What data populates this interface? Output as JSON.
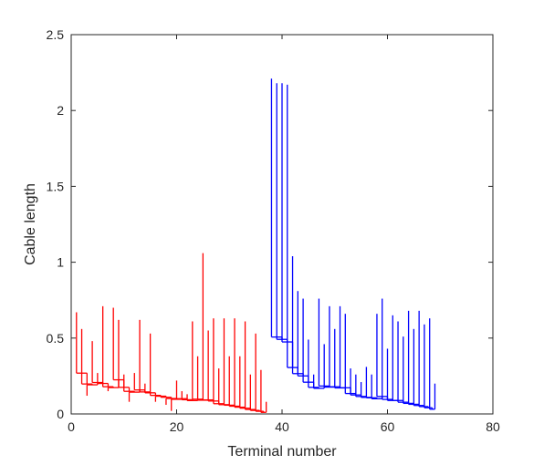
{
  "chart_data": {
    "type": "dendrogram",
    "xlabel": "Terminal number",
    "ylabel": "Cable length",
    "xlim": [
      0,
      80
    ],
    "ylim": [
      0,
      2.5
    ],
    "xticks": [
      0,
      20,
      40,
      60,
      80
    ],
    "yticks": [
      0,
      0.5,
      1,
      1.5,
      2,
      2.5
    ],
    "xtick_labels": [
      "0",
      "20",
      "40",
      "60",
      "80"
    ],
    "ytick_labels": [
      "0",
      "0.5",
      "1",
      "1.5",
      "2",
      "2.5"
    ],
    "grid": false,
    "box": true,
    "series": [
      {
        "color": "#ff0000",
        "x_range": [
          1,
          37
        ],
        "terminal_heights": [
          0.67,
          0.56,
          0.12,
          0.48,
          0.27,
          0.71,
          0.15,
          0.7,
          0.62,
          0.26,
          0.08,
          0.27,
          0.62,
          0.2,
          0.53,
          0.08,
          0.12,
          0.06,
          0.02,
          0.22,
          0.15,
          0.13,
          0.61,
          0.38,
          1.06,
          0.55,
          0.63,
          0.3,
          0.63,
          0.38,
          0.63,
          0.38,
          0.61,
          0.26,
          0.53,
          0.29,
          0.08
        ],
        "base_height": 0.0
      },
      {
        "color": "#0000ff",
        "x_range": [
          38,
          69
        ],
        "terminal_heights": [
          2.21,
          2.18,
          2.18,
          2.17,
          1.04,
          0.81,
          0.76,
          0.49,
          0.26,
          0.76,
          0.46,
          0.71,
          0.56,
          0.71,
          0.66,
          0.3,
          0.26,
          0.21,
          0.31,
          0.26,
          0.66,
          0.76,
          0.43,
          0.65,
          0.61,
          0.51,
          0.68,
          0.56,
          0.68,
          0.59,
          0.63,
          0.2
        ],
        "base_height": 0.02
      }
    ]
  }
}
